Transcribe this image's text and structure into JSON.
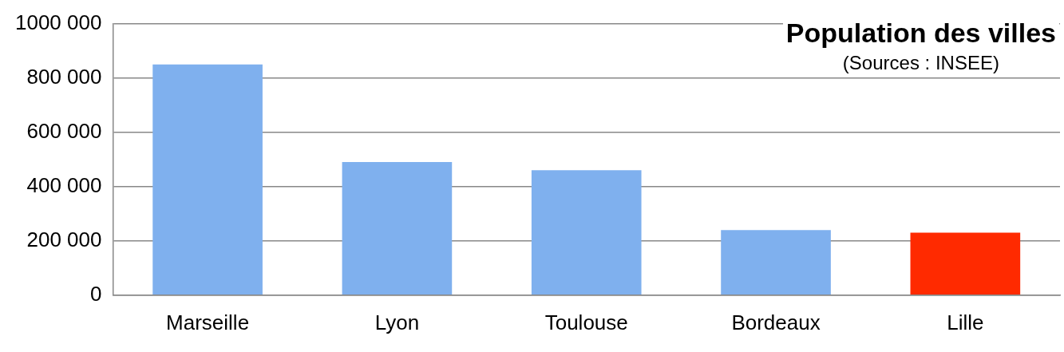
{
  "chart_data": {
    "type": "bar",
    "title": "Population des villes",
    "subtitle": "(Sources : INSEE)",
    "categories": [
      "Marseille",
      "Lyon",
      "Toulouse",
      "Bordeaux",
      "Lille"
    ],
    "values": [
      850000,
      490000,
      460000,
      240000,
      230000
    ],
    "colors": [
      "#7fb0ee",
      "#7fb0ee",
      "#7fb0ee",
      "#7fb0ee",
      "#ff2a00"
    ],
    "ylim": [
      0,
      1000000
    ],
    "yticks": [
      0,
      {
        "value": 200000,
        "label": "200 000"
      },
      {
        "value": 400000,
        "label": "400 000"
      },
      {
        "value": 600000,
        "label": "600 000"
      },
      {
        "value": 800000,
        "label": "800 000"
      },
      {
        "value": 1000000,
        "label": "1000 000"
      }
    ],
    "grid": "y",
    "legend": false
  }
}
